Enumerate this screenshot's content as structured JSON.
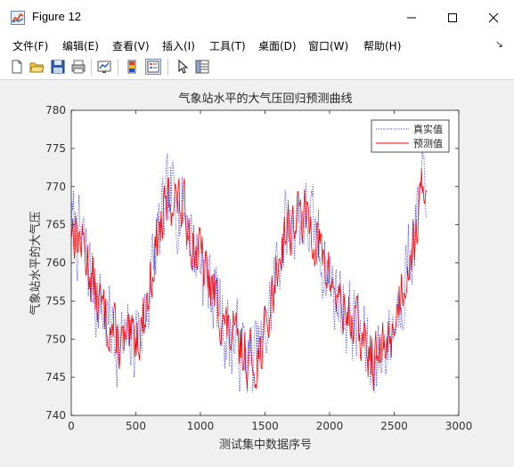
{
  "window": {
    "title": "Figure 12"
  },
  "menu": {
    "items": [
      "文件(F)",
      "编辑(E)",
      "查看(V)",
      "插入(I)",
      "工具(T)",
      "桌面(D)",
      "窗口(W)",
      "帮助(H)"
    ],
    "overflow_icon": "corner-arrow-icon"
  },
  "toolbar": {
    "icons": [
      "new-figure-icon",
      "open-file-icon",
      "save-icon",
      "print-icon",
      "link-plot-icon",
      "insert-colorbar-icon",
      "insert-legend-icon",
      "pointer-icon",
      "property-editor-icon"
    ]
  },
  "colors": {
    "series_true": "#3333ff",
    "series_pred": "#ff0000"
  },
  "chart_data": {
    "type": "line",
    "title": "气象站水平的大气压回归预测曲线",
    "xlabel": "测试集中数据序号",
    "ylabel": "气象站水平的大气压",
    "xlim": [
      0,
      3000
    ],
    "ylim": [
      740,
      780
    ],
    "xticks": [
      0,
      500,
      1000,
      1500,
      2000,
      2500,
      3000
    ],
    "yticks": [
      740,
      745,
      750,
      755,
      760,
      765,
      770,
      775,
      780
    ],
    "grid": false,
    "legend_position": "top-right",
    "n_points": 2750,
    "trend_x": [
      0,
      100,
      200,
      300,
      380,
      450,
      550,
      600,
      650,
      700,
      750,
      800,
      850,
      900,
      950,
      1000,
      1050,
      1100,
      1150,
      1200,
      1250,
      1300,
      1350,
      1400,
      1450,
      1500,
      1550,
      1600,
      1650,
      1700,
      1750,
      1800,
      1850,
      1900,
      1950,
      2000,
      2050,
      2100,
      2150,
      2200,
      2250,
      2300,
      2350,
      2400,
      2450,
      2500,
      2550,
      2600,
      2650,
      2700,
      2750
    ],
    "trend_y": [
      765,
      762,
      755,
      752,
      749,
      749,
      752,
      756,
      762,
      765,
      768,
      769,
      767,
      766,
      762,
      761,
      758,
      756,
      754,
      751,
      750,
      749,
      748,
      747,
      748,
      750,
      755,
      760,
      764,
      765,
      766,
      766,
      765,
      763,
      760,
      758,
      756,
      754,
      753,
      752,
      750,
      748,
      747,
      748,
      750,
      752,
      756,
      760,
      763,
      767,
      772
    ],
    "series": [
      {
        "name": "真实值",
        "style": "dotted",
        "noise": 5.0,
        "seed": 7
      },
      {
        "name": "预测值",
        "style": "solid",
        "noise": 3.4,
        "seed": 13
      }
    ]
  }
}
